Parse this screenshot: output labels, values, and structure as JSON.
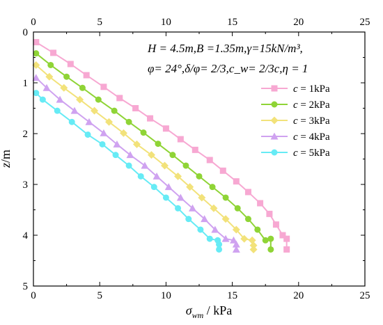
{
  "chart_data": {
    "type": "line",
    "x_axis": {
      "label_main": "σ",
      "label_sub": "wm",
      "label_unit": " / kPa",
      "range": [
        0,
        25
      ],
      "ticks": [
        "0",
        "5",
        "10",
        "15",
        "20",
        "25"
      ],
      "position": "top-and-bottom"
    },
    "y_axis": {
      "label_main": "z",
      "label_unit": "/m",
      "range": [
        0,
        5
      ],
      "ticks": [
        "0",
        "1",
        "2",
        "3",
        "4",
        "5"
      ],
      "inverted": true
    },
    "annotation": {
      "line1": "H = 4.5m,B =1.35m,γ=15kN/m³,",
      "line2": "φ= 24°,δ/φ= 2/3,c_w= 2/3c,η = 1"
    },
    "legend_position": "right-middle",
    "series": [
      {
        "name": "c = 1kPa",
        "color": "#f7a8d2",
        "marker": "square",
        "x": [
          0.2,
          1.5,
          2.8,
          4.0,
          5.3,
          6.5,
          7.7,
          8.8,
          10.0,
          11.1,
          12.2,
          13.3,
          14.3,
          15.3,
          16.2,
          17.1,
          17.8,
          18.3,
          18.8,
          19.1,
          19.1
        ],
        "y": [
          0.2,
          0.41,
          0.63,
          0.85,
          1.08,
          1.3,
          1.5,
          1.7,
          1.9,
          2.11,
          2.32,
          2.52,
          2.73,
          2.94,
          3.15,
          3.37,
          3.58,
          3.79,
          4.0,
          4.07,
          4.28
        ]
      },
      {
        "name": "c = 2kPa",
        "color": "#8fd436",
        "marker": "circle",
        "x": [
          0.2,
          1.3,
          2.5,
          3.7,
          4.9,
          6.1,
          7.2,
          8.3,
          9.4,
          10.5,
          11.5,
          12.5,
          13.5,
          14.5,
          15.4,
          16.2,
          16.9,
          17.5,
          17.9,
          17.9
        ],
        "y": [
          0.42,
          0.65,
          0.88,
          1.1,
          1.33,
          1.55,
          1.77,
          1.98,
          2.2,
          2.42,
          2.63,
          2.84,
          3.05,
          3.26,
          3.47,
          3.68,
          3.89,
          4.1,
          4.07,
          4.28
        ]
      },
      {
        "name": "c = 3kPa",
        "color": "#f2e27a",
        "marker": "diamond",
        "x": [
          0.2,
          1.2,
          2.3,
          3.5,
          4.6,
          5.7,
          6.8,
          7.8,
          8.9,
          9.9,
          10.9,
          11.8,
          12.7,
          13.6,
          14.5,
          15.3,
          15.9,
          16.5,
          16.6,
          16.6
        ],
        "y": [
          0.65,
          0.88,
          1.1,
          1.33,
          1.55,
          1.77,
          1.99,
          2.21,
          2.42,
          2.63,
          2.84,
          3.05,
          3.26,
          3.47,
          3.68,
          3.89,
          4.07,
          4.1,
          4.2,
          4.28
        ]
      },
      {
        "name": "c = 4kPa",
        "color": "#cfa2f0",
        "marker": "triangle",
        "x": [
          0.2,
          1.0,
          2.0,
          3.1,
          4.2,
          5.3,
          6.3,
          7.3,
          8.4,
          9.3,
          10.2,
          11.1,
          12.0,
          12.9,
          13.7,
          14.5,
          15.1,
          15.3,
          15.3
        ],
        "y": [
          0.9,
          1.1,
          1.33,
          1.55,
          1.77,
          1.99,
          2.21,
          2.42,
          2.63,
          2.84,
          3.05,
          3.26,
          3.47,
          3.68,
          3.89,
          4.07,
          4.1,
          4.18,
          4.28
        ]
      },
      {
        "name": "c = 5kPa",
        "color": "#66ebf5",
        "marker": "circle",
        "x": [
          0.2,
          0.7,
          1.8,
          2.9,
          4.1,
          5.2,
          6.2,
          7.2,
          8.1,
          9.1,
          10.0,
          10.9,
          11.7,
          12.6,
          13.3,
          13.9,
          14.0,
          14.0
        ],
        "y": [
          1.2,
          1.33,
          1.55,
          1.77,
          2.02,
          2.21,
          2.42,
          2.63,
          2.84,
          3.05,
          3.26,
          3.47,
          3.68,
          3.89,
          4.07,
          4.1,
          4.18,
          4.28
        ]
      }
    ]
  }
}
